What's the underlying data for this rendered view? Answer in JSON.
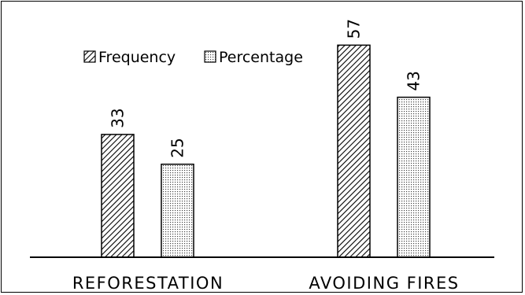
{
  "chart_data": {
    "type": "bar",
    "categories": [
      "REFORESTATION",
      "AVOIDING FIRES"
    ],
    "series": [
      {
        "name": "Frequency",
        "values": [
          33,
          57
        ],
        "pattern": "diagonal-hatch"
      },
      {
        "name": "Percentage",
        "values": [
          25,
          43
        ],
        "pattern": "dotted"
      }
    ],
    "ylim": [
      0,
      60
    ],
    "grid": false,
    "legend": "top-left",
    "data_labels_rotated": true,
    "colors": {
      "bar_stroke": "#000000",
      "hatch": "#000000",
      "background": "#ffffff"
    }
  }
}
